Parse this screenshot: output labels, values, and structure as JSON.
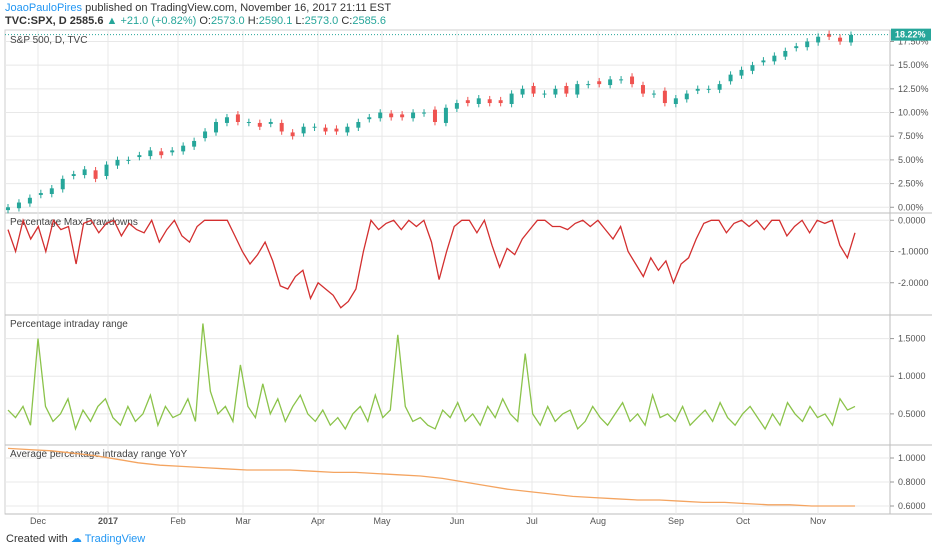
{
  "header": {
    "author": "JoaoPauloPires",
    "published_text": "published on TradingView.com, November 16, 2017 21:11 EST",
    "symbol": "TVC:SPX, D",
    "price": "2585.6",
    "change": "▲ +21.0 (+0.82%)",
    "o_label": "O:",
    "o_value": "2573.0",
    "h_label": "H:",
    "h_value": "2590.1",
    "l_label": "L:",
    "l_value": "2573.0",
    "c_label": "C:",
    "c_value": "2585.6"
  },
  "footer": {
    "created_with": "Created with",
    "brand": "TradingView"
  },
  "colors": {
    "up": "#26a69a",
    "down": "#ef5350",
    "drawdown": "#d32f2f",
    "range": "#8bc34a",
    "avg": "#f4a460",
    "grid": "#e8e8e8",
    "badge": "#26a69a"
  },
  "x_axis": [
    "Dec",
    "2017",
    "Feb",
    "Mar",
    "Apr",
    "May",
    "Jun",
    "Jul",
    "Aug",
    "Sep",
    "Oct",
    "Nov"
  ],
  "chart_data": [
    {
      "type": "candlestick",
      "title": "S&P 500, D, TVC",
      "ylabel": "",
      "y_ticks": [
        "17.50%",
        "15.00%",
        "12.50%",
        "10.00%",
        "7.50%",
        "5.00%",
        "2.50%",
        "0.00%"
      ],
      "ylim": [
        -0.5,
        18.5
      ],
      "last_value_label": "18.22%",
      "values_approx": [
        0,
        0.5,
        1,
        1.5,
        2,
        3,
        3.5,
        4,
        3,
        4.5,
        5,
        5,
        5.5,
        6,
        5.5,
        6,
        6.5,
        7,
        8,
        9,
        9.5,
        9,
        9,
        8.5,
        9,
        8,
        7.5,
        8.5,
        8.5,
        8,
        8,
        8.5,
        9,
        9.5,
        10,
        9.5,
        9.5,
        10,
        10,
        9,
        10.5,
        11,
        11,
        11.5,
        11,
        11,
        12,
        12.5,
        12,
        12,
        12.5,
        12,
        13,
        13,
        13,
        13.5,
        13.5,
        13,
        12,
        12,
        11,
        11.5,
        12,
        12.5,
        12.5,
        13,
        14,
        14.5,
        15,
        15.5,
        16,
        16.5,
        17,
        17.5,
        18,
        18,
        17.5,
        18.2
      ]
    },
    {
      "type": "line",
      "title": "Percentage Max Drawdowns",
      "y_ticks": [
        "0.0000",
        "-1.0000",
        "-2.0000"
      ],
      "ylim": [
        -3.0,
        0.2
      ],
      "values": [
        -0.3,
        -1.0,
        0,
        -0.6,
        -0.2,
        -1.0,
        0,
        -0.3,
        -0.2,
        -1.4,
        -0.1,
        0,
        -0.4,
        -0.1,
        0,
        -0.5,
        -0.1,
        -0.3,
        -0.4,
        0,
        -0.7,
        -0.3,
        0,
        -0.5,
        -0.7,
        -0.2,
        0,
        0,
        0,
        0,
        -0.5,
        -1.0,
        -1.4,
        -1.1,
        -0.7,
        -1.3,
        -2.1,
        -2.2,
        -1.8,
        -1.6,
        -2.5,
        -2.0,
        -2.2,
        -2.4,
        -2.8,
        -2.6,
        -2.2,
        -1.0,
        0,
        -0.3,
        -0.1,
        0,
        -0.3,
        0,
        -0.2,
        0,
        -0.7,
        -1.9,
        -1.0,
        -0.2,
        0,
        0,
        -0.4,
        0,
        -0.8,
        -1.5,
        -0.9,
        -1.1,
        -0.6,
        -0.3,
        0,
        0,
        -0.2,
        -0.2,
        -0.3,
        -0.1,
        0,
        -0.2,
        0,
        -0.3,
        -0.6,
        -0.2,
        -1.0,
        -1.4,
        -1.8,
        -1.2,
        -1.6,
        -1.3,
        -2.0,
        -1.4,
        -1.2,
        -0.6,
        -0.1,
        0,
        0,
        -0.4,
        -0.1,
        0,
        -0.2,
        0,
        -0.3,
        0,
        0,
        -0.5,
        -0.2,
        0,
        -0.4,
        0,
        -0.1,
        0,
        -0.8,
        -1.2,
        -0.4
      ]
    },
    {
      "type": "line",
      "title": "Percentage intraday range",
      "y_ticks": [
        "1.5000",
        "1.0000",
        "0.5000"
      ],
      "ylim": [
        0.1,
        1.8
      ],
      "values": [
        0.55,
        0.45,
        0.6,
        0.35,
        1.5,
        0.6,
        0.4,
        0.5,
        0.7,
        0.3,
        0.55,
        0.4,
        0.6,
        0.7,
        0.45,
        0.35,
        0.6,
        0.4,
        0.5,
        0.75,
        0.35,
        0.6,
        0.45,
        0.5,
        0.7,
        0.4,
        1.7,
        0.8,
        0.5,
        0.6,
        0.4,
        1.15,
        0.6,
        0.45,
        0.9,
        0.5,
        0.7,
        0.4,
        0.6,
        0.75,
        0.5,
        0.4,
        0.55,
        0.35,
        0.45,
        0.3,
        0.5,
        0.6,
        0.4,
        0.75,
        0.45,
        0.55,
        1.55,
        0.6,
        0.4,
        0.45,
        0.35,
        0.3,
        0.55,
        0.45,
        0.65,
        0.4,
        0.5,
        0.35,
        0.6,
        0.45,
        0.7,
        0.5,
        0.4,
        1.3,
        0.5,
        0.35,
        0.6,
        0.4,
        0.5,
        0.55,
        0.3,
        0.4,
        0.6,
        0.45,
        0.35,
        0.5,
        0.65,
        0.4,
        0.5,
        0.35,
        0.75,
        0.45,
        0.5,
        0.4,
        0.6,
        0.35,
        0.45,
        0.55,
        0.4,
        0.65,
        0.45,
        0.35,
        0.5,
        0.6,
        0.45,
        0.3,
        0.5,
        0.35,
        0.65,
        0.5,
        0.4,
        0.6,
        0.45,
        0.5,
        0.35,
        0.7,
        0.55,
        0.6
      ]
    },
    {
      "type": "line",
      "title": "Average percentage intraday range YoY",
      "y_ticks": [
        "1.0000",
        "0.8000",
        "0.6000"
      ],
      "ylim": [
        0.55,
        1.1
      ],
      "values": [
        1.08,
        1.07,
        1.06,
        1.04,
        1.02,
        0.99,
        0.96,
        0.94,
        0.93,
        0.92,
        0.91,
        0.9,
        0.9,
        0.9,
        0.89,
        0.88,
        0.88,
        0.87,
        0.86,
        0.85,
        0.83,
        0.8,
        0.77,
        0.74,
        0.72,
        0.7,
        0.68,
        0.67,
        0.66,
        0.65,
        0.65,
        0.64,
        0.63,
        0.63,
        0.62,
        0.61,
        0.61,
        0.6,
        0.6,
        0.6
      ]
    }
  ]
}
